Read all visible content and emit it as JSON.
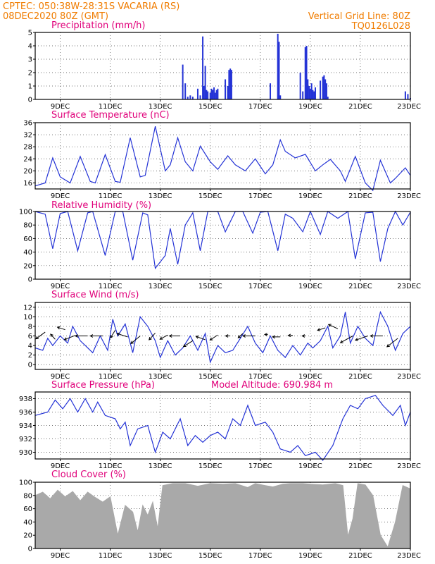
{
  "header": {
    "left_line1": "CPTEC:   050:38W-28:31S   VACARIA (RS)",
    "left_line2": "08DEC2020 80Z (GMT)",
    "right_line1": "Vertical Grid Line: 80Z",
    "right_line2": "TQ0126L028"
  },
  "x_ticks": [
    "9DEC",
    "11DEC",
    "13DEC",
    "15DEC",
    "17DEC",
    "19DEC",
    "21DEC",
    "23DEC"
  ],
  "colors": {
    "line": "#2433d6",
    "cloud": "#a9a9a9",
    "title": "#e0007a",
    "header": "#f07c00"
  },
  "chart_data": [
    {
      "id": "precip",
      "type": "bar",
      "title": "Precipitation (mm/h)",
      "ylim": [
        0,
        5
      ],
      "yticks": [
        0,
        1,
        2,
        3,
        4,
        5
      ],
      "points": [
        [
          13.9,
          2.6
        ],
        [
          14.0,
          1.2
        ],
        [
          14.1,
          0.2
        ],
        [
          14.2,
          0.3
        ],
        [
          14.3,
          0.2
        ],
        [
          14.5,
          0.8
        ],
        [
          14.6,
          0.3
        ],
        [
          14.7,
          4.7
        ],
        [
          14.75,
          1.0
        ],
        [
          14.8,
          2.5
        ],
        [
          14.85,
          0.7
        ],
        [
          14.9,
          0.6
        ],
        [
          15.0,
          0.5
        ],
        [
          15.05,
          0.8
        ],
        [
          15.1,
          0.7
        ],
        [
          15.15,
          0.9
        ],
        [
          15.2,
          0.5
        ],
        [
          15.25,
          0.7
        ],
        [
          15.3,
          0.8
        ],
        [
          15.6,
          1.5
        ],
        [
          15.7,
          1.0
        ],
        [
          15.75,
          2.2
        ],
        [
          15.8,
          2.3
        ],
        [
          15.85,
          2.2
        ],
        [
          17.4,
          1.2
        ],
        [
          17.7,
          4.9
        ],
        [
          17.75,
          4.3
        ],
        [
          17.8,
          0.3
        ],
        [
          18.6,
          2.0
        ],
        [
          18.7,
          0.6
        ],
        [
          18.8,
          3.9
        ],
        [
          18.85,
          4.0
        ],
        [
          18.9,
          1.5
        ],
        [
          18.95,
          1.0
        ],
        [
          19.0,
          0.8
        ],
        [
          19.05,
          1.2
        ],
        [
          19.1,
          0.7
        ],
        [
          19.15,
          0.6
        ],
        [
          19.2,
          0.9
        ],
        [
          19.4,
          1.4
        ],
        [
          19.5,
          1.7
        ],
        [
          19.55,
          1.8
        ],
        [
          19.6,
          1.5
        ],
        [
          19.65,
          1.2
        ],
        [
          19.7,
          0.2
        ],
        [
          22.8,
          0.6
        ],
        [
          22.9,
          0.4
        ],
        [
          23.0,
          0.1
        ]
      ]
    },
    {
      "id": "temp",
      "type": "line",
      "title": "Surface Temperature (nC)",
      "ylim": [
        14,
        36
      ],
      "yticks": [
        16,
        20,
        24,
        28,
        32,
        36
      ],
      "points": [
        [
          8.0,
          15
        ],
        [
          8.4,
          16
        ],
        [
          8.7,
          24.3
        ],
        [
          9.0,
          18
        ],
        [
          9.4,
          16
        ],
        [
          9.8,
          24.8
        ],
        [
          10.2,
          16.5
        ],
        [
          10.4,
          16
        ],
        [
          10.8,
          25.4
        ],
        [
          11.2,
          16.5
        ],
        [
          11.4,
          16.2
        ],
        [
          11.8,
          31
        ],
        [
          12.2,
          18
        ],
        [
          12.4,
          18.5
        ],
        [
          12.8,
          34.8
        ],
        [
          13.2,
          20
        ],
        [
          13.4,
          22
        ],
        [
          13.7,
          31
        ],
        [
          14.0,
          23
        ],
        [
          14.3,
          20
        ],
        [
          14.6,
          28.2
        ],
        [
          15.0,
          23
        ],
        [
          15.3,
          20.5
        ],
        [
          15.7,
          25
        ],
        [
          16.0,
          22
        ],
        [
          16.4,
          20
        ],
        [
          16.8,
          24
        ],
        [
          17.2,
          19
        ],
        [
          17.5,
          22
        ],
        [
          17.8,
          30.3
        ],
        [
          18.0,
          26.5
        ],
        [
          18.4,
          24.3
        ],
        [
          18.8,
          25.5
        ],
        [
          19.2,
          20
        ],
        [
          19.5,
          22
        ],
        [
          19.8,
          23.8
        ],
        [
          20.2,
          20
        ],
        [
          20.4,
          16.5
        ],
        [
          20.8,
          24.8
        ],
        [
          21.2,
          16
        ],
        [
          21.5,
          13.5
        ],
        [
          21.8,
          23.5
        ],
        [
          22.2,
          16
        ],
        [
          22.4,
          17.5
        ],
        [
          22.8,
          21
        ],
        [
          23.0,
          18.5
        ]
      ]
    },
    {
      "id": "rh",
      "type": "line",
      "title": "Relative Humidity (%)",
      "ylim": [
        0,
        100
      ],
      "yticks": [
        0,
        20,
        40,
        60,
        80,
        100
      ],
      "points": [
        [
          8.0,
          100
        ],
        [
          8.4,
          96
        ],
        [
          8.7,
          45
        ],
        [
          9.0,
          97
        ],
        [
          9.3,
          100
        ],
        [
          9.7,
          42
        ],
        [
          10.1,
          98
        ],
        [
          10.3,
          100
        ],
        [
          10.8,
          35
        ],
        [
          11.2,
          100
        ],
        [
          11.5,
          100
        ],
        [
          11.9,
          28
        ],
        [
          12.3,
          98
        ],
        [
          12.5,
          95
        ],
        [
          12.8,
          16
        ],
        [
          13.2,
          35
        ],
        [
          13.4,
          75
        ],
        [
          13.7,
          22
        ],
        [
          14.0,
          80
        ],
        [
          14.3,
          98
        ],
        [
          14.6,
          42
        ],
        [
          14.9,
          100
        ],
        [
          15.3,
          100
        ],
        [
          15.6,
          70
        ],
        [
          16.0,
          100
        ],
        [
          16.3,
          100
        ],
        [
          16.7,
          68
        ],
        [
          17.0,
          99
        ],
        [
          17.3,
          100
        ],
        [
          17.7,
          42
        ],
        [
          18.0,
          96
        ],
        [
          18.3,
          90
        ],
        [
          18.7,
          70
        ],
        [
          19.0,
          100
        ],
        [
          19.4,
          66
        ],
        [
          19.7,
          100
        ],
        [
          20.1,
          90
        ],
        [
          20.5,
          100
        ],
        [
          20.8,
          30
        ],
        [
          21.2,
          98
        ],
        [
          21.5,
          99
        ],
        [
          21.8,
          26
        ],
        [
          22.1,
          75
        ],
        [
          22.4,
          100
        ],
        [
          22.7,
          80
        ],
        [
          23.0,
          99
        ]
      ]
    },
    {
      "id": "wind",
      "type": "line",
      "title": "Surface Wind (m/s)",
      "ylim": [
        -1,
        13
      ],
      "yticks": [
        0,
        2,
        4,
        6,
        8,
        10,
        12
      ],
      "points": [
        [
          8.0,
          3.5
        ],
        [
          8.3,
          3
        ],
        [
          8.5,
          5.5
        ],
        [
          8.7,
          4
        ],
        [
          9.0,
          6
        ],
        [
          9.3,
          4.5
        ],
        [
          9.5,
          8
        ],
        [
          9.8,
          5
        ],
        [
          10.0,
          4
        ],
        [
          10.3,
          2.5
        ],
        [
          10.6,
          6
        ],
        [
          10.9,
          3
        ],
        [
          11.1,
          9.5
        ],
        [
          11.3,
          6
        ],
        [
          11.6,
          8.5
        ],
        [
          11.9,
          2.5
        ],
        [
          12.2,
          10
        ],
        [
          12.5,
          8
        ],
        [
          12.8,
          5
        ],
        [
          13.0,
          1.5
        ],
        [
          13.3,
          5
        ],
        [
          13.6,
          2
        ],
        [
          13.9,
          3.5
        ],
        [
          14.2,
          6
        ],
        [
          14.5,
          3
        ],
        [
          14.8,
          6.5
        ],
        [
          15.0,
          0.5
        ],
        [
          15.3,
          4
        ],
        [
          15.6,
          2.5
        ],
        [
          15.9,
          3
        ],
        [
          16.2,
          5.5
        ],
        [
          16.5,
          8
        ],
        [
          16.8,
          4.5
        ],
        [
          17.1,
          2.5
        ],
        [
          17.4,
          6
        ],
        [
          17.7,
          3
        ],
        [
          18.0,
          1.5
        ],
        [
          18.3,
          4
        ],
        [
          18.6,
          2
        ],
        [
          18.9,
          4.5
        ],
        [
          19.1,
          3.5
        ],
        [
          19.4,
          5
        ],
        [
          19.7,
          8
        ],
        [
          19.9,
          3.5
        ],
        [
          20.2,
          6
        ],
        [
          20.4,
          11
        ],
        [
          20.6,
          4.5
        ],
        [
          20.9,
          8
        ],
        [
          21.2,
          5.5
        ],
        [
          21.5,
          4
        ],
        [
          21.8,
          11
        ],
        [
          22.1,
          8
        ],
        [
          22.4,
          3
        ],
        [
          22.7,
          6.5
        ],
        [
          23.0,
          8
        ]
      ],
      "arrows": [
        [
          8.4,
          6.8,
          -0.6,
          -0.8
        ],
        [
          8.8,
          5.3,
          -0.3,
          0.6
        ],
        [
          9.2,
          7.3,
          -0.5,
          0.3
        ],
        [
          9.6,
          6.1,
          -0.7,
          -0.5
        ],
        [
          10.1,
          6.0,
          -0.8,
          0.0
        ],
        [
          10.7,
          6.0,
          -0.8,
          0.0
        ],
        [
          11.2,
          7.2,
          -0.3,
          -0.9
        ],
        [
          11.7,
          5.8,
          -0.7,
          0.4
        ],
        [
          12.2,
          6.0,
          -0.6,
          -0.9
        ],
        [
          12.8,
          6.6,
          -0.4,
          -0.8
        ],
        [
          13.3,
          6.2,
          -0.5,
          -0.5
        ],
        [
          13.8,
          6.0,
          -0.7,
          0.0
        ],
        [
          14.3,
          5.0,
          -0.6,
          -0.7
        ],
        [
          14.8,
          5.2,
          -0.6,
          0.4
        ],
        [
          15.3,
          6.2,
          -0.5,
          -0.6
        ],
        [
          15.8,
          6.0,
          -0.3,
          0.0
        ],
        [
          16.3,
          6.5,
          -0.3,
          -0.5
        ],
        [
          16.8,
          6.0,
          -0.8,
          0.0
        ],
        [
          17.3,
          6.3,
          -0.2,
          0.0
        ],
        [
          17.8,
          5.8,
          -0.5,
          0.0
        ],
        [
          18.3,
          6.1,
          -0.3,
          0.0
        ],
        [
          18.8,
          6.0,
          -0.2,
          0.0
        ],
        [
          19.6,
          7.7,
          -0.5,
          -0.3
        ],
        [
          20.1,
          7.5,
          -0.6,
          0.5
        ],
        [
          20.7,
          6.0,
          -0.8,
          -0.8
        ],
        [
          21.3,
          6.0,
          -0.8,
          -0.5
        ],
        [
          21.9,
          6.0,
          -0.8,
          0.0
        ],
        [
          22.5,
          5.5,
          -0.7,
          -1.0
        ]
      ]
    },
    {
      "id": "pres",
      "type": "line",
      "title": "Surface Pressure (hPa)",
      "subtitle": "Model Altitude: 690.984 m",
      "ylim": [
        929,
        939
      ],
      "yticks": [
        930,
        932,
        934,
        936,
        938
      ],
      "points": [
        [
          8.0,
          935.5
        ],
        [
          8.5,
          936
        ],
        [
          8.8,
          937.8
        ],
        [
          9.1,
          936.5
        ],
        [
          9.4,
          938
        ],
        [
          9.7,
          936
        ],
        [
          10.0,
          938
        ],
        [
          10.3,
          936
        ],
        [
          10.5,
          937.5
        ],
        [
          10.8,
          935.5
        ],
        [
          11.2,
          935
        ],
        [
          11.4,
          933.5
        ],
        [
          11.6,
          934.5
        ],
        [
          11.8,
          931
        ],
        [
          12.1,
          933.5
        ],
        [
          12.5,
          934
        ],
        [
          12.8,
          930
        ],
        [
          13.1,
          933
        ],
        [
          13.4,
          932
        ],
        [
          13.8,
          935
        ],
        [
          14.1,
          931
        ],
        [
          14.4,
          932.5
        ],
        [
          14.7,
          931.5
        ],
        [
          15.0,
          932.5
        ],
        [
          15.3,
          933
        ],
        [
          15.6,
          932
        ],
        [
          15.9,
          935
        ],
        [
          16.2,
          934
        ],
        [
          16.5,
          937
        ],
        [
          16.8,
          934
        ],
        [
          17.2,
          934.5
        ],
        [
          17.5,
          933
        ],
        [
          17.8,
          930.5
        ],
        [
          18.2,
          930
        ],
        [
          18.5,
          931
        ],
        [
          18.8,
          929.5
        ],
        [
          19.2,
          930
        ],
        [
          19.5,
          928.8
        ],
        [
          19.9,
          931
        ],
        [
          20.3,
          935
        ],
        [
          20.6,
          937
        ],
        [
          20.9,
          936.5
        ],
        [
          21.2,
          938
        ],
        [
          21.6,
          938.5
        ],
        [
          21.9,
          937
        ],
        [
          22.3,
          935.5
        ],
        [
          22.6,
          937
        ],
        [
          22.8,
          934
        ],
        [
          23.0,
          936
        ]
      ]
    },
    {
      "id": "cloud",
      "type": "area",
      "title": "Cloud Cover (%)",
      "ylim": [
        0,
        100
      ],
      "yticks": [
        0,
        20,
        40,
        60,
        80,
        100
      ],
      "points": [
        [
          8.0,
          80
        ],
        [
          8.3,
          85
        ],
        [
          8.6,
          75
        ],
        [
          8.9,
          88
        ],
        [
          9.2,
          78
        ],
        [
          9.5,
          86
        ],
        [
          9.8,
          72
        ],
        [
          10.1,
          85
        ],
        [
          10.4,
          77
        ],
        [
          10.7,
          70
        ],
        [
          11.0,
          78
        ],
        [
          11.3,
          20
        ],
        [
          11.6,
          65
        ],
        [
          11.9,
          55
        ],
        [
          12.1,
          25
        ],
        [
          12.3,
          65
        ],
        [
          12.5,
          50
        ],
        [
          12.7,
          70
        ],
        [
          12.9,
          30
        ],
        [
          13.1,
          95
        ],
        [
          13.5,
          98
        ],
        [
          14.0,
          98
        ],
        [
          14.5,
          94
        ],
        [
          15.0,
          98
        ],
        [
          15.5,
          97
        ],
        [
          16.0,
          98
        ],
        [
          16.5,
          92
        ],
        [
          16.8,
          98
        ],
        [
          17.2,
          95
        ],
        [
          17.5,
          93
        ],
        [
          17.9,
          97
        ],
        [
          18.2,
          98
        ],
        [
          18.7,
          98
        ],
        [
          19.0,
          97
        ],
        [
          19.5,
          96
        ],
        [
          20.0,
          98
        ],
        [
          20.3,
          95
        ],
        [
          20.5,
          18
        ],
        [
          20.7,
          45
        ],
        [
          20.9,
          98
        ],
        [
          21.2,
          96
        ],
        [
          21.5,
          80
        ],
        [
          21.8,
          20
        ],
        [
          22.1,
          2
        ],
        [
          22.4,
          40
        ],
        [
          22.7,
          95
        ],
        [
          23.0,
          90
        ]
      ]
    }
  ]
}
